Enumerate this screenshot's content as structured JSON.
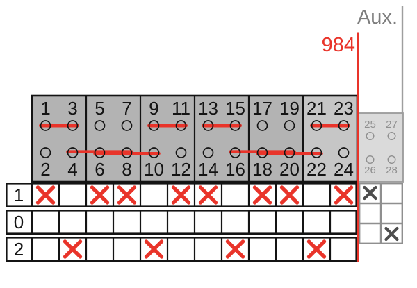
{
  "labels": {
    "aux": "Aux.",
    "cable_number": "984"
  },
  "colors": {
    "red": "#e9342a",
    "panel_fill": "#b3b3b3",
    "panel_fill_light": "#c6c6c6",
    "panel_border": "#141414",
    "text": "#141414",
    "grid_border": "#141414",
    "cell_fill": "#ffffff",
    "aux_fill": "#dadada",
    "aux_stroke": "#9a9a9a",
    "aux_text": "#8f8f8f",
    "aux_grid_border": "#8f8f8f",
    "aux_x": "#4d4d4d",
    "aux_line": "#9e9e9e",
    "aux_title": "#7d7d7d"
  },
  "panel": {
    "top_numbers": [
      "1",
      "3",
      "5",
      "7",
      "9",
      "11",
      "13",
      "15",
      "17",
      "19",
      "21",
      "23"
    ],
    "bottom_numbers": [
      "2",
      "4",
      "6",
      "8",
      "10",
      "12",
      "14",
      "16",
      "18",
      "20",
      "22",
      "24"
    ],
    "top_jumpers": [
      [
        1,
        3
      ],
      [
        9,
        11
      ],
      [
        13,
        15
      ],
      [
        21,
        23
      ]
    ],
    "bottom_jumpers": [
      [
        4,
        8
      ],
      [
        6,
        10
      ],
      [
        16,
        20
      ],
      [
        18,
        22
      ]
    ],
    "light_group_index": 5
  },
  "aux_panel": {
    "top_numbers": [
      "25",
      "27"
    ],
    "bottom_numbers": [
      "26",
      "28"
    ]
  },
  "grid": {
    "row_labels": [
      "1",
      "0",
      "2"
    ],
    "columns": 12,
    "marked_columns": {
      "row_1": [
        1,
        3,
        4,
        6,
        7,
        9,
        10,
        12
      ],
      "row_0": [],
      "row_2": [
        2,
        5,
        8,
        11
      ]
    }
  },
  "aux_grid": {
    "marks": [
      [
        true,
        false
      ],
      [
        false,
        false
      ],
      [
        false,
        true
      ]
    ]
  }
}
